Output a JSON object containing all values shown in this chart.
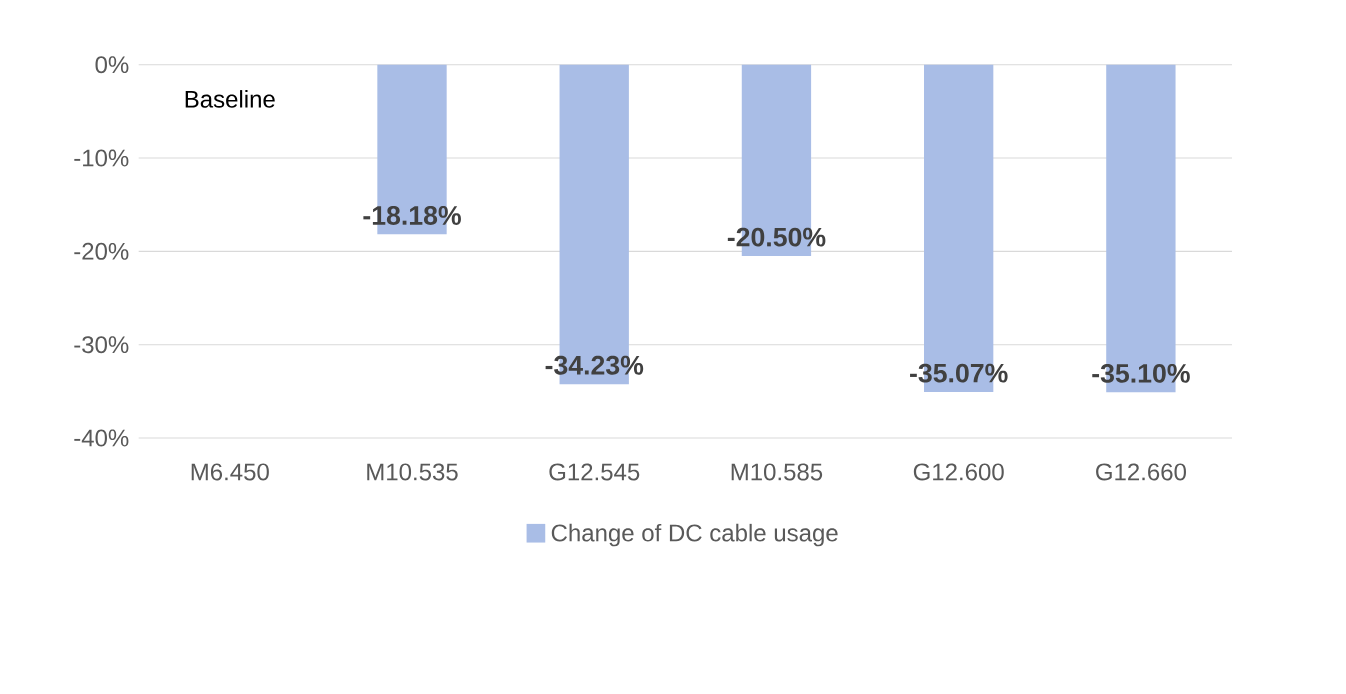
{
  "chart_data": {
    "type": "bar",
    "categories": [
      "M6.450",
      "M10.535",
      "G12.545",
      "M10.585",
      "G12.600",
      "G12.660"
    ],
    "series": [
      {
        "name": "Change of DC cable usage",
        "color": "#a9bde6",
        "values": [
          0,
          -18.18,
          -34.23,
          -20.5,
          -35.07,
          -35.1
        ],
        "value_labels": [
          null,
          "-18.18%",
          "-34.23%",
          "-20.50%",
          "-35.07%",
          "-35.10%"
        ]
      }
    ],
    "ylim": [
      -40,
      0
    ],
    "yticks": [
      {
        "value": -40,
        "label": "-40%"
      },
      {
        "value": -30,
        "label": "-30%"
      },
      {
        "value": -20,
        "label": "-20%"
      },
      {
        "value": -10,
        "label": "-10%"
      },
      {
        "value": 0,
        "label": "0%"
      }
    ],
    "annotations": [
      {
        "text": "Baseline",
        "x": "M6.450",
        "y": 0
      }
    ],
    "grid": "y",
    "legend": "bottom"
  }
}
